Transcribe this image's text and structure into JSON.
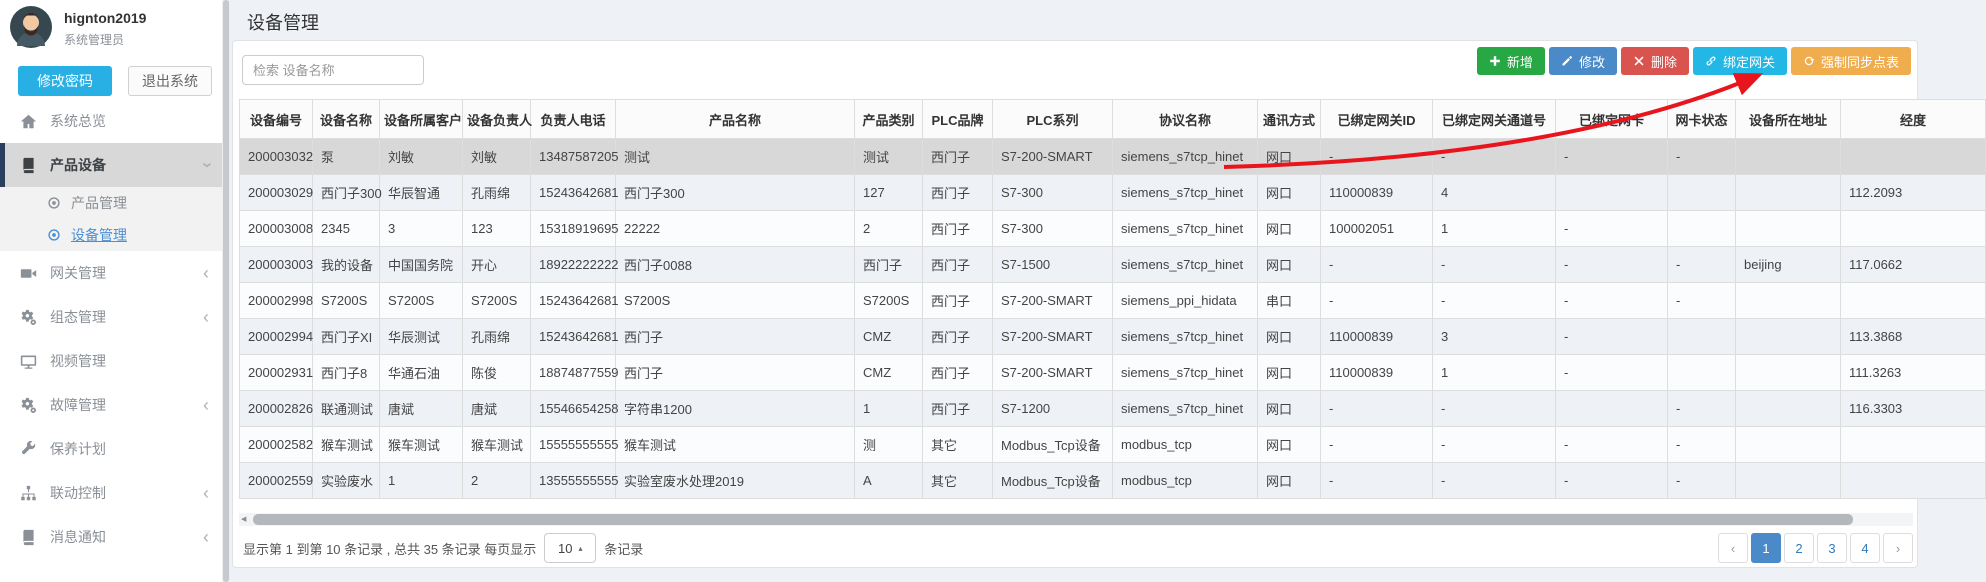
{
  "user": {
    "name": "hignton2019",
    "role": "系统管理员",
    "change_password": "修改密码",
    "logout": "退出系统"
  },
  "page": {
    "title": "设备管理"
  },
  "sidebar": {
    "items": [
      {
        "id": "overview",
        "label": "系统总览",
        "icon": "home-icon",
        "chevron": ""
      },
      {
        "id": "products",
        "label": "产品设备",
        "icon": "book-icon",
        "chevron": "down",
        "active": true,
        "children": [
          {
            "id": "product-manage",
            "label": "产品管理",
            "active": false
          },
          {
            "id": "device-manage",
            "label": "设备管理",
            "active": true
          }
        ]
      },
      {
        "id": "gateway",
        "label": "网关管理",
        "icon": "camera-icon",
        "chevron": "left"
      },
      {
        "id": "config",
        "label": "组态管理",
        "icon": "gears-icon",
        "chevron": "left"
      },
      {
        "id": "video",
        "label": "视频管理",
        "icon": "monitor-icon",
        "chevron": ""
      },
      {
        "id": "fault",
        "label": "故障管理",
        "icon": "gears-icon",
        "chevron": "left"
      },
      {
        "id": "maintenance",
        "label": "保养计划",
        "icon": "wrench-icon",
        "chevron": ""
      },
      {
        "id": "linkage",
        "label": "联动控制",
        "icon": "sitemap-icon",
        "chevron": "left"
      },
      {
        "id": "message",
        "label": "消息通知",
        "icon": "message-icon",
        "chevron": "left"
      }
    ]
  },
  "toolbar": {
    "search_placeholder": "检索 设备名称",
    "buttons": [
      {
        "id": "add",
        "label": "新增",
        "icon": "plus-icon",
        "color": "#28a745"
      },
      {
        "id": "edit",
        "label": "修改",
        "icon": "pencil-icon",
        "color": "#4b8ac9"
      },
      {
        "id": "delete",
        "label": "删除",
        "icon": "x-icon",
        "color": "#d9534f"
      },
      {
        "id": "bind-gateway",
        "label": "绑定网关",
        "icon": "link-icon",
        "color": "#23b7e5"
      },
      {
        "id": "force-sync",
        "label": "强制同步点表",
        "icon": "refresh-icon",
        "color": "#f0ad4e"
      }
    ]
  },
  "table": {
    "columns": [
      "设备编号",
      "设备名称",
      "设备所属客户",
      "设备负责人",
      "负责人电话",
      "产品名称",
      "产品类别",
      "PLC品牌",
      "PLC系列",
      "协议名称",
      "通讯方式",
      "已绑定网关ID",
      "已绑定网关通道号",
      "已绑定网卡",
      "网卡状态",
      "设备所在地址",
      "经度"
    ],
    "rows": [
      [
        "200003032",
        "泵",
        "刘敏",
        "刘敏",
        "13487587205",
        "测试",
        "测试",
        "西门子",
        "S7-200-SMART",
        "siemens_s7tcp_hinet",
        "网口",
        "-",
        "-",
        "-",
        "-",
        "",
        ""
      ],
      [
        "200003029",
        "西门子300",
        "华辰智通",
        "孔雨绵",
        "15243642681",
        "西门子300",
        "127",
        "西门子",
        "S7-300",
        "siemens_s7tcp_hinet",
        "网口",
        "110000839",
        "4",
        "",
        "",
        "",
        "112.2093"
      ],
      [
        "200003008",
        "2345",
        "3",
        "123",
        "15318919695",
        "22222",
        "2",
        "西门子",
        "S7-300",
        "siemens_s7tcp_hinet",
        "网口",
        "100002051",
        "1",
        "-",
        "",
        "",
        ""
      ],
      [
        "200003003",
        "我的设备",
        "中国国务院",
        "开心",
        "18922222222",
        "西门子0088",
        "西门子",
        "西门子",
        "S7-1500",
        "siemens_s7tcp_hinet",
        "网口",
        "-",
        "-",
        "-",
        "-",
        "beijing",
        "117.0662"
      ],
      [
        "200002998",
        "S7200S",
        "S7200S",
        "S7200S",
        "15243642681",
        "S7200S",
        "S7200S",
        "西门子",
        "S7-200-SMART",
        "siemens_ppi_hidata",
        "串口",
        "-",
        "-",
        "-",
        "-",
        "",
        ""
      ],
      [
        "200002994",
        "西门子XI",
        "华辰测试",
        "孔雨绵",
        "15243642681",
        "西门子",
        "CMZ",
        "西门子",
        "S7-200-SMART",
        "siemens_s7tcp_hinet",
        "网口",
        "110000839",
        "3",
        "-",
        "",
        "",
        "113.3868"
      ],
      [
        "200002931",
        "西门子8",
        "华通石油",
        "陈俊",
        "18874877559",
        "西门子",
        "CMZ",
        "西门子",
        "S7-200-SMART",
        "siemens_s7tcp_hinet",
        "网口",
        "110000839",
        "1",
        "-",
        "",
        "",
        "111.3263"
      ],
      [
        "200002826",
        "联通测试",
        "唐斌",
        "唐斌",
        "15546654258",
        "字符串1200",
        "1",
        "西门子",
        "S7-1200",
        "siemens_s7tcp_hinet",
        "网口",
        "-",
        "-",
        "",
        "-",
        "",
        "116.3303"
      ],
      [
        "200002582",
        "猴车测试",
        "猴车测试",
        "猴车测试",
        "15555555555",
        "猴车测试",
        "测",
        "其它",
        "Modbus_Tcp设备",
        "modbus_tcp",
        "网口",
        "-",
        "-",
        "-",
        "-",
        "",
        ""
      ],
      [
        "200002559",
        "实验废水",
        "1",
        "2",
        "13555555555",
        "实验室废水处理2019",
        "A",
        "其它",
        "Modbus_Tcp设备",
        "modbus_tcp",
        "网口",
        "-",
        "-",
        "-",
        "-",
        "",
        ""
      ]
    ]
  },
  "pagination": {
    "summary_prefix": "显示第 1 到第 10 条记录 , 总共 35 条记录 每页显示",
    "page_size": "10",
    "summary_suffix": "条记录",
    "pages": [
      "‹",
      "1",
      "2",
      "3",
      "4",
      "›"
    ],
    "active_page": "1"
  },
  "annotation": {
    "arrow_color": "#e8151d"
  }
}
